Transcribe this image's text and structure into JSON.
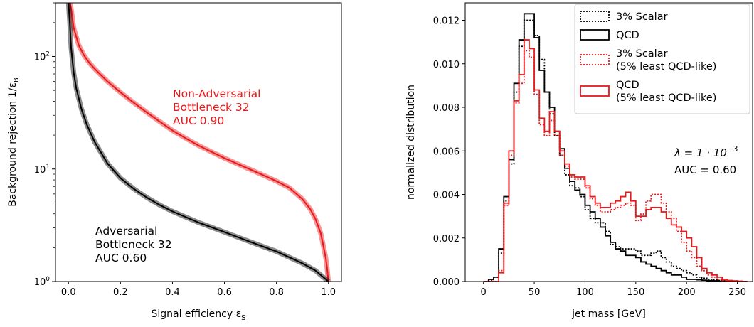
{
  "chart_data": [
    {
      "type": "line",
      "xlabel": "Signal efficiency ε",
      "xlabel_sub": "S",
      "ylabel": "Background rejection 1/ε",
      "ylabel_sub": "B",
      "xlim": [
        -0.05,
        1.05
      ],
      "ylim": [
        1,
        300
      ],
      "y_scale": "log",
      "xticks": [
        "0.0",
        "0.2",
        "0.4",
        "0.6",
        "0.8",
        "1.0"
      ],
      "xtick_values": [
        0.0,
        0.2,
        0.4,
        0.6,
        0.8,
        1.0
      ],
      "yticks": [
        {
          "base": "10",
          "exp": "0"
        },
        {
          "base": "10",
          "exp": "1"
        },
        {
          "base": "10",
          "exp": "2"
        }
      ],
      "ytick_values": [
        1,
        10,
        100
      ],
      "series": [
        {
          "color": "#e8191b",
          "annotation": [
            "Non-Adversarial",
            "Bottleneck 32",
            "AUC 0.90"
          ],
          "x": [
            0.005,
            0.01,
            0.02,
            0.04,
            0.06,
            0.08,
            0.1,
            0.15,
            0.2,
            0.25,
            0.3,
            0.35,
            0.4,
            0.45,
            0.5,
            0.55,
            0.6,
            0.65,
            0.7,
            0.75,
            0.8,
            0.85,
            0.9,
            0.93,
            0.95,
            0.97,
            0.98,
            0.99,
            0.995,
            1.0
          ],
          "y": [
            300,
            270,
            180,
            125,
            102,
            88,
            78,
            60,
            48,
            39,
            32,
            26.5,
            22,
            18.8,
            16.2,
            14.2,
            12.5,
            11.1,
            9.9,
            8.8,
            7.8,
            6.8,
            5.4,
            4.4,
            3.6,
            2.7,
            2.1,
            1.6,
            1.3,
            1.0
          ]
        },
        {
          "color": "#000000",
          "annotation": [
            "Adversarial",
            "Bottleneck 32",
            "AUC 0.60"
          ],
          "x": [
            0.0,
            0.005,
            0.01,
            0.02,
            0.03,
            0.05,
            0.07,
            0.1,
            0.15,
            0.2,
            0.25,
            0.3,
            0.35,
            0.4,
            0.5,
            0.6,
            0.7,
            0.8,
            0.9,
            0.95,
            1.0
          ],
          "y": [
            300,
            200,
            120,
            72,
            52,
            34,
            25,
            17.5,
            11.2,
            8.3,
            6.7,
            5.6,
            4.8,
            4.2,
            3.35,
            2.75,
            2.25,
            1.85,
            1.45,
            1.25,
            1.0
          ]
        }
      ]
    },
    {
      "type": "histogram",
      "xlabel": "jet mass [GeV]",
      "ylabel": "normalized distribution",
      "xlim": [
        -18,
        265
      ],
      "ylim": [
        0,
        0.0128
      ],
      "xticks": [
        "0",
        "50",
        "100",
        "150",
        "200",
        "250"
      ],
      "xtick_values": [
        0,
        50,
        100,
        150,
        200,
        250
      ],
      "yticks": [
        "0.000",
        "0.002",
        "0.004",
        "0.006",
        "0.008",
        "0.010",
        "0.012"
      ],
      "ytick_values": [
        0,
        0.002,
        0.004,
        0.006,
        0.008,
        0.01,
        0.012
      ],
      "bin_edges": [
        0,
        5,
        10,
        15,
        20,
        25,
        30,
        35,
        40,
        45,
        50,
        55,
        60,
        65,
        70,
        75,
        80,
        85,
        90,
        95,
        100,
        105,
        110,
        115,
        120,
        125,
        130,
        135,
        140,
        145,
        150,
        155,
        160,
        165,
        170,
        175,
        180,
        185,
        190,
        195,
        200,
        205,
        210,
        215,
        220,
        225,
        230,
        235,
        240,
        245,
        250,
        255,
        260
      ],
      "series": [
        {
          "name": "3% Scalar",
          "color": "#000000",
          "style": "dotted",
          "values": [
            0,
            5e-05,
            0.0002,
            0.0013,
            0.0037,
            0.0054,
            0.0087,
            0.0108,
            0.012,
            0.012,
            0.0113,
            0.0102,
            0.0087,
            0.0077,
            0.0067,
            0.0058,
            0.0049,
            0.0044,
            0.0043,
            0.0039,
            0.0033,
            0.0029,
            0.0027,
            0.0027,
            0.0023,
            0.0017,
            0.0016,
            0.0015,
            0.0015,
            0.0015,
            0.0014,
            0.0012,
            0.0012,
            0.0013,
            0.0014,
            0.0011,
            0.0009,
            0.0007,
            0.0006,
            0.0005,
            0.0004,
            0.0003,
            0.0002,
            0.00015,
            0.0001,
            7e-05,
            5e-05,
            3e-05,
            2e-05,
            1e-05,
            1e-05,
            0
          ]
        },
        {
          "name": "QCD",
          "color": "#000000",
          "style": "solid",
          "values": [
            0,
            0.0001,
            0.0002,
            0.0015,
            0.0039,
            0.0056,
            0.0091,
            0.0111,
            0.0123,
            0.0123,
            0.0112,
            0.0097,
            0.0087,
            0.008,
            0.0069,
            0.0061,
            0.0052,
            0.0046,
            0.0042,
            0.004,
            0.0035,
            0.0032,
            0.0029,
            0.0025,
            0.0021,
            0.0018,
            0.0015,
            0.0014,
            0.0012,
            0.0012,
            0.0011,
            0.0009,
            0.0008,
            0.0007,
            0.0006,
            0.0005,
            0.0004,
            0.0003,
            0.0003,
            0.0002,
            0.0001,
            0.0001,
            8e-05,
            6e-05,
            4e-05,
            3e-05,
            2e-05,
            1e-05,
            1e-05,
            0,
            0,
            0
          ]
        },
        {
          "name": "3% Scalar\n(5% least QCD-like)",
          "color": "#e8191b",
          "style": "dotted",
          "values": [
            0,
            0,
            0,
            0.0005,
            0.0035,
            0.0058,
            0.0082,
            0.0091,
            0.0106,
            0.0103,
            0.0086,
            0.0072,
            0.0067,
            0.0074,
            0.0067,
            0.0058,
            0.0053,
            0.0048,
            0.0047,
            0.0047,
            0.0043,
            0.0038,
            0.0035,
            0.0032,
            0.0032,
            0.0033,
            0.0034,
            0.0035,
            0.0036,
            0.0035,
            0.0028,
            0.0031,
            0.0037,
            0.004,
            0.004,
            0.0036,
            0.0032,
            0.0029,
            0.0023,
            0.0018,
            0.0014,
            0.0011,
            0.0007,
            0.0005,
            0.0003,
            0.0002,
            0.0001,
            5e-05,
            3e-05,
            2e-05,
            1e-05,
            0
          ]
        },
        {
          "name": "QCD\n(5% least QCD-like)",
          "color": "#e8191b",
          "style": "solid",
          "values": [
            0,
            0,
            0,
            0.0004,
            0.0036,
            0.006,
            0.0083,
            0.0095,
            0.0111,
            0.0107,
            0.0088,
            0.0075,
            0.0069,
            0.0078,
            0.0069,
            0.006,
            0.0054,
            0.0049,
            0.0048,
            0.0048,
            0.0044,
            0.0039,
            0.0036,
            0.0034,
            0.0034,
            0.0036,
            0.0037,
            0.0039,
            0.0041,
            0.0037,
            0.003,
            0.003,
            0.0033,
            0.0034,
            0.0034,
            0.0032,
            0.0029,
            0.0026,
            0.0025,
            0.0023,
            0.002,
            0.0016,
            0.0011,
            0.0006,
            0.0004,
            0.0003,
            0.0002,
            0.0001,
            5e-05,
            3e-05,
            1e-05,
            0
          ]
        }
      ],
      "annotation": {
        "lambda_prefix": "λ = 1 · 10",
        "lambda_exp": "−3",
        "auc": "AUC = 0.60"
      },
      "legend_position": "top-right"
    }
  ]
}
